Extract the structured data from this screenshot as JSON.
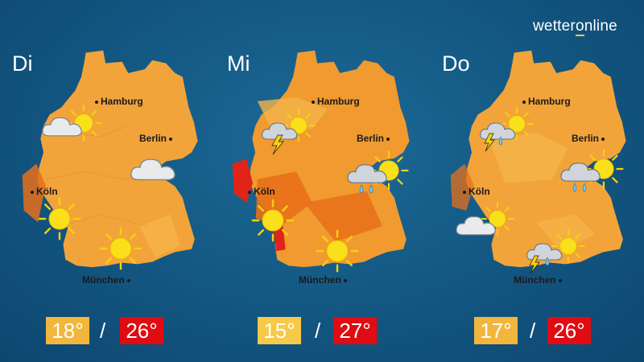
{
  "brand": {
    "prefix": "wetter",
    "accent": "o",
    "suffix": "nline"
  },
  "cities": {
    "hamburg": "Hamburg",
    "berlin": "Berlin",
    "koeln": "Köln",
    "muenchen": "München"
  },
  "days": [
    {
      "label": "Di",
      "min": "18°",
      "max": "26°",
      "min_color": "#f2b63c",
      "icons": [
        "cloud-sun-icon",
        "cloud-icon",
        "sun-icon",
        "sun-icon"
      ]
    },
    {
      "label": "Mi",
      "min": "15°",
      "max": "27°",
      "min_color": "#f7c948",
      "icons": [
        "thunderstorm-sun-icon",
        "rain-sun-icon",
        "sun-icon",
        "sun-icon"
      ]
    },
    {
      "label": "Do",
      "min": "17°",
      "max": "26°",
      "min_color": "#f2b63c",
      "icons": [
        "thunderstorm-sun-icon",
        "rain-sun-icon",
        "cloud-sun-icon",
        "thunderstorm-sun-icon"
      ]
    }
  ],
  "separator": "/",
  "colors": {
    "background": "#145a85",
    "max_temp": "#e10b12",
    "map_warm": "#f2a43a",
    "map_hot": "#e8701a",
    "map_extreme": "#e0241a"
  }
}
